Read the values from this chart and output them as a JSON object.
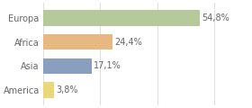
{
  "categories": [
    "Europa",
    "Africa",
    "Asia",
    "America"
  ],
  "values": [
    54.8,
    24.4,
    17.1,
    3.8
  ],
  "labels": [
    "54,8%",
    "24,4%",
    "17,1%",
    "3,8%"
  ],
  "bar_colors": [
    "#b5c99a",
    "#e8b882",
    "#8a9fc0",
    "#e8d87a"
  ],
  "background_color": "#ffffff",
  "grid_color": "#e0e0e0",
  "xlim": [
    0,
    72
  ],
  "label_fontsize": 7.0,
  "tick_fontsize": 7.0,
  "bar_height": 0.65,
  "label_color": "#666666",
  "tick_color": "#666666"
}
